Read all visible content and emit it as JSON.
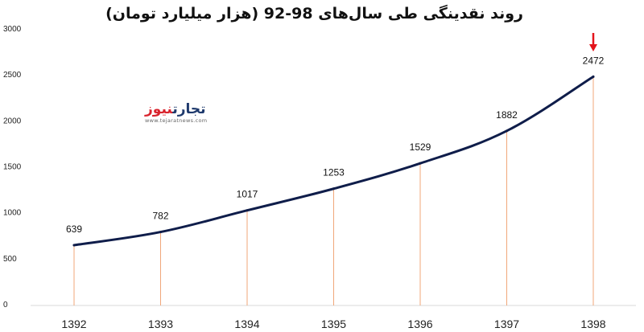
{
  "title": "روند نقدینگی طی سال‌های 98-92 (هزار میلیارد تومان)",
  "logo": {
    "part_red": "نیوز",
    "part_dark": "تجارت",
    "url": "www.tejaratnews.com"
  },
  "colors": {
    "line": "#0f1d4a",
    "stem": "#f0a77a",
    "arrow": "#e3141b",
    "axis": "#d9d9d9",
    "text": "#111111"
  },
  "chart_data": {
    "type": "line",
    "categories": [
      "1392",
      "1393",
      "1394",
      "1395",
      "1396",
      "1397",
      "1398"
    ],
    "series": [
      {
        "values": [
          639,
          782,
          1017,
          1253,
          1529,
          1882,
          2472
        ]
      }
    ],
    "data_labels": [
      "639",
      "782",
      "1017",
      "1253",
      "1529",
      "1882",
      "2472"
    ],
    "ylim": [
      0,
      3000
    ],
    "yticks": [
      "0",
      "500",
      "1000",
      "1500",
      "2000",
      "2500",
      "3000"
    ],
    "grid": false,
    "highlight_category": "1398"
  }
}
